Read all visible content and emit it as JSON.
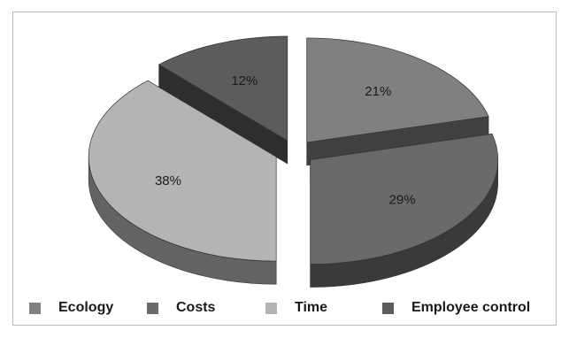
{
  "chart_data": {
    "type": "pie",
    "style": "3d-exploded",
    "slices": [
      {
        "label": "Ecology",
        "value": 21,
        "display": "21%",
        "color": "#808080"
      },
      {
        "label": "Costs",
        "value": 29,
        "display": "29%",
        "color": "#6a6a6a"
      },
      {
        "label": "Time",
        "value": 38,
        "display": "38%",
        "color": "#b4b4b4"
      },
      {
        "label": "Employee control",
        "value": 12,
        "display": "12%",
        "color": "#5c5c5c"
      }
    ],
    "legend_position": "bottom"
  }
}
